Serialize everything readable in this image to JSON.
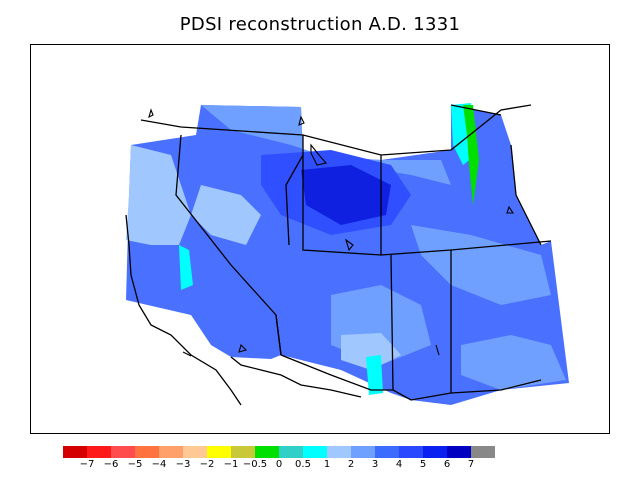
{
  "title": "PDSI reconstruction A.D. 1331",
  "legend": {
    "colors": [
      "#d40000",
      "#ff1a1a",
      "#ff4d4d",
      "#ff7340",
      "#ff9f6a",
      "#ffc894",
      "#ffff00",
      "#c8c838",
      "#00e000",
      "#30d0c8",
      "#00ffff",
      "#a0c8ff",
      "#6fa0ff",
      "#3c6cff",
      "#2a48ff",
      "#0a20f0",
      "#0000c0",
      "#888888"
    ],
    "labels": [
      "−7",
      "−6",
      "−5",
      "−4",
      "−3",
      "−2",
      "−1",
      "−0.5",
      "0",
      "0.5",
      "1",
      "2",
      "3",
      "4",
      "5",
      "6",
      "7"
    ]
  },
  "map": {
    "region": "Western United States",
    "background_color": "#4a70ff"
  }
}
